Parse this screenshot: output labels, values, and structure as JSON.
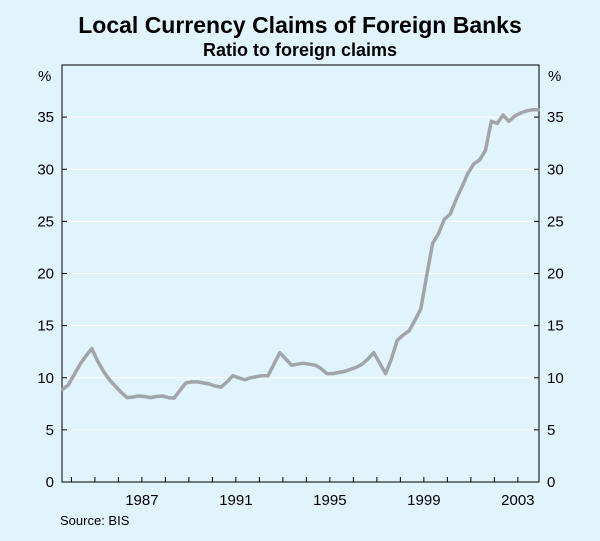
{
  "chart_data": {
    "type": "line",
    "title": "Local Currency Claims of Foreign Banks",
    "subtitle": "Ratio to foreign claims",
    "y_unit_left": "%",
    "y_unit_right": "%",
    "source": "Source: BIS",
    "ylim": [
      0,
      40
    ],
    "yticks": [
      0,
      5,
      10,
      15,
      20,
      25,
      30,
      35
    ],
    "xlim": [
      1983.6,
      2003.9
    ],
    "xticks": [
      1987,
      1991,
      1995,
      1999,
      2003
    ],
    "grid": true,
    "series": [
      {
        "color": "#a0a5aa",
        "x": [
          1983.63,
          1983.87,
          1984.12,
          1984.37,
          1984.62,
          1984.87,
          1985.12,
          1985.37,
          1985.62,
          1985.87,
          1986.12,
          1986.37,
          1986.62,
          1986.87,
          1987.12,
          1987.37,
          1987.62,
          1987.87,
          1988.12,
          1988.37,
          1988.62,
          1988.87,
          1989.12,
          1989.37,
          1989.62,
          1989.87,
          1990.12,
          1990.37,
          1990.62,
          1990.87,
          1991.12,
          1991.37,
          1991.62,
          1991.87,
          1992.12,
          1992.37,
          1992.62,
          1992.87,
          1993.12,
          1993.37,
          1993.62,
          1993.87,
          1994.12,
          1994.37,
          1994.62,
          1994.87,
          1995.12,
          1995.37,
          1995.62,
          1995.87,
          1996.12,
          1996.37,
          1996.62,
          1996.87,
          1997.12,
          1997.37,
          1997.62,
          1997.87,
          1998.12,
          1998.37,
          1998.62,
          1998.87,
          1999.12,
          1999.37,
          1999.62,
          1999.87,
          2000.12,
          2000.37,
          2000.62,
          2000.87,
          2001.12,
          2001.37,
          2001.62,
          2001.87,
          2002.12,
          2002.37,
          2002.62,
          2002.87,
          2003.12,
          2003.37,
          2003.62,
          2003.87
        ],
        "values": [
          8.9,
          9.3,
          10.3,
          11.3,
          12.1,
          12.8,
          11.6,
          10.6,
          9.8,
          9.2,
          8.6,
          8.1,
          8.15,
          8.25,
          8.2,
          8.1,
          8.2,
          8.25,
          8.1,
          8.05,
          8.8,
          9.5,
          9.6,
          9.6,
          9.5,
          9.4,
          9.2,
          9.1,
          9.6,
          10.2,
          10.0,
          9.8,
          10.0,
          10.1,
          10.2,
          10.2,
          11.3,
          12.4,
          11.8,
          11.2,
          11.3,
          11.4,
          11.3,
          11.2,
          10.9,
          10.4,
          10.4,
          10.5,
          10.6,
          10.8,
          11.0,
          11.3,
          11.8,
          12.4,
          11.4,
          10.4,
          11.8,
          13.6,
          14.1,
          14.5,
          15.5,
          16.6,
          19.8,
          22.9,
          23.8,
          25.2,
          25.7,
          27.1,
          28.3,
          29.6,
          30.5,
          30.9,
          31.8,
          34.6,
          34.4,
          35.2,
          34.6,
          35.1,
          35.4,
          35.6,
          35.7,
          35.7
        ]
      }
    ]
  }
}
